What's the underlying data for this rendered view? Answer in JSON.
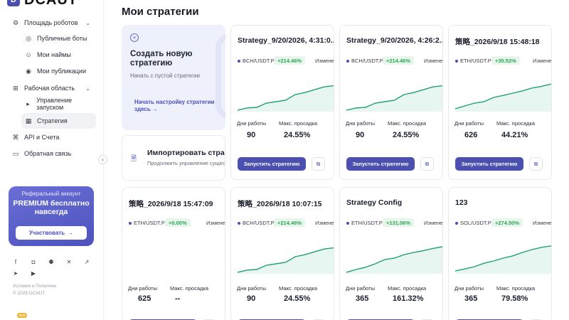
{
  "app": {
    "logo_text": "DCAUT",
    "logo_mark": "D"
  },
  "sidebar": {
    "items": [
      {
        "label": "Площадь роботов",
        "icon": "robot-icon",
        "chevron": "⌄"
      },
      {
        "label": "Публичные боты",
        "icon": "bot-icon"
      },
      {
        "label": "Мои найм​ы",
        "icon": "hire-icon"
      },
      {
        "label": "Мои публикации",
        "icon": "broadcast-icon"
      },
      {
        "label": "Рабочая область",
        "icon": "workspace-icon",
        "chevron": "⌄"
      },
      {
        "label": "Управление запуском",
        "icon": "launch-icon"
      },
      {
        "label": "Стратегия",
        "icon": "grid-icon"
      },
      {
        "label": "API и Счета",
        "icon": "api-icon"
      },
      {
        "label": "Обратная связь",
        "icon": "chat-icon"
      }
    ],
    "promo": {
      "subtitle": "Реферальный аккаунт",
      "title": "PREMIUM бесплатно навсегда",
      "button": "Участвовать",
      "button_arrow": "→"
    },
    "footer_terms": "Условия и Политики",
    "footer_copyright": "© 2025 DCAUT",
    "badge": "new"
  },
  "main": {
    "title": "Мои стратегии",
    "create": {
      "title": "Создать новую стратегию",
      "subtitle": "Начать с пустой стратегии",
      "link": "Начать настройку стратегии здесь →"
    },
    "import": {
      "title": "Импортировать стратегию",
      "subtitle": "Продолжить управление существующей"
    },
    "labels": {
      "days": "Дни работы",
      "drawdown": "Макс. просадка",
      "change": "Изменение",
      "run": "Запустить стратегию"
    },
    "strategies": [
      {
        "title": "Strategy_9/20/2026, 4:31:0..",
        "pair": "BCH/USDT.P",
        "pct": "+214.46%",
        "days": "90",
        "drawdown": "24.55%",
        "trend": [
          0.0,
          0.08,
          0.1,
          0.25,
          0.3,
          0.35,
          0.55,
          0.62,
          0.72,
          0.82,
          0.86
        ]
      },
      {
        "title": "Strategy_9/20/2026, 4:26:2..",
        "pair": "BCH/USDT.P",
        "pct": "+214.46%",
        "days": "90",
        "drawdown": "24.55%",
        "trend": [
          0.0,
          0.08,
          0.1,
          0.25,
          0.3,
          0.35,
          0.55,
          0.62,
          0.72,
          0.82,
          0.86
        ]
      },
      {
        "title": "策略_2026/9/18 15:48:18",
        "pair": "ETH/USDT.P",
        "pct": "+35.52%",
        "days": "626",
        "drawdown": "44.21%",
        "trend": [
          0.05,
          0.15,
          0.25,
          0.3,
          0.45,
          0.52,
          0.6,
          0.68,
          0.78,
          0.84,
          0.92
        ]
      },
      {
        "title": "策略_2026/9/18 15:47:09",
        "pair": "ETH/USDT.P",
        "pct": "+0.00%",
        "days": "625",
        "drawdown": "--",
        "trend": []
      },
      {
        "title": "策略_2026/9/18 10:07:15",
        "pair": "BCH/USDT.P",
        "pct": "+214.46%",
        "days": "90",
        "drawdown": "24.55%",
        "trend": [
          0.0,
          0.08,
          0.1,
          0.25,
          0.3,
          0.35,
          0.55,
          0.62,
          0.72,
          0.82,
          0.86
        ]
      },
      {
        "title": "Strategy Config",
        "pair": "ETH/USDT.P",
        "pct": "+131.06%",
        "days": "365",
        "drawdown": "161.32%",
        "trend": [
          0.0,
          0.1,
          0.18,
          0.3,
          0.45,
          0.5,
          0.62,
          0.7,
          0.76,
          0.84,
          0.9
        ]
      },
      {
        "title": "123",
        "pair": "SOL/USDT.P",
        "pct": "+274.50%",
        "days": "365",
        "drawdown": "79.58%",
        "trend": [
          0.05,
          0.12,
          0.2,
          0.32,
          0.4,
          0.5,
          0.58,
          0.7,
          0.8,
          0.88,
          0.93
        ]
      }
    ]
  }
}
